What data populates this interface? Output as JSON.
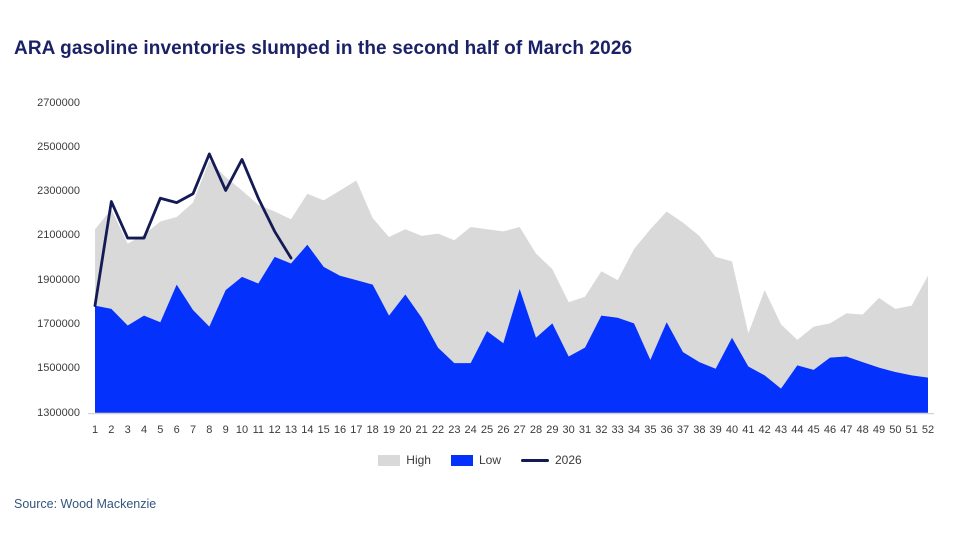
{
  "title": "ARA gasoline inventories slumped in the second half of March 2026",
  "source": "Source: Wood Mackenzie",
  "colors": {
    "title_text": "#1b2166",
    "source_text": "#33567e",
    "axis_text": "#3b3b3b",
    "axis_line": "#d2d2d2",
    "high_fill": "#d9d9d9",
    "low_fill": "#0431fb",
    "line_2026": "#141b54"
  },
  "chart_data": {
    "type": "area",
    "title": "ARA gasoline inventories slumped in the second half of March 2026",
    "xlabel": "",
    "ylabel": "",
    "x": [
      1,
      2,
      3,
      4,
      5,
      6,
      7,
      8,
      9,
      10,
      11,
      12,
      13,
      14,
      15,
      16,
      17,
      18,
      19,
      20,
      21,
      22,
      23,
      24,
      25,
      26,
      27,
      28,
      29,
      30,
      31,
      32,
      33,
      34,
      35,
      36,
      37,
      38,
      39,
      40,
      41,
      42,
      43,
      44,
      45,
      46,
      47,
      48,
      49,
      50,
      51,
      52
    ],
    "ylim": [
      1300000,
      2700000
    ],
    "ytick_step": 200000,
    "grid": false,
    "legend_position": "bottom-center",
    "series": [
      {
        "name": "High",
        "type": "area",
        "color": "#d9d9d9",
        "values": [
          2130000,
          2220000,
          2065000,
          2105000,
          2165000,
          2185000,
          2250000,
          2440000,
          2365000,
          2305000,
          2240000,
          2210000,
          2175000,
          2290000,
          2260000,
          2305000,
          2350000,
          2180000,
          2095000,
          2130000,
          2100000,
          2110000,
          2080000,
          2140000,
          2130000,
          2120000,
          2140000,
          2020000,
          1950000,
          1800000,
          1825000,
          1940000,
          1900000,
          2040000,
          2130000,
          2210000,
          2160000,
          2100000,
          2005000,
          1985000,
          1660000,
          1855000,
          1700000,
          1630000,
          1690000,
          1705000,
          1750000,
          1745000,
          1820000,
          1770000,
          1785000,
          1920000
        ]
      },
      {
        "name": "Low",
        "type": "area",
        "color": "#0431fb",
        "values": [
          1785000,
          1770000,
          1695000,
          1740000,
          1710000,
          1880000,
          1765000,
          1690000,
          1855000,
          1915000,
          1885000,
          2005000,
          1975000,
          2060000,
          1960000,
          1920000,
          1900000,
          1880000,
          1740000,
          1835000,
          1730000,
          1595000,
          1525000,
          1525000,
          1670000,
          1615000,
          1860000,
          1640000,
          1705000,
          1555000,
          1595000,
          1740000,
          1730000,
          1705000,
          1540000,
          1710000,
          1575000,
          1530000,
          1500000,
          1640000,
          1510000,
          1470000,
          1410000,
          1515000,
          1495000,
          1550000,
          1555000,
          1530000,
          1505000,
          1485000,
          1470000,
          1460000
        ]
      },
      {
        "name": "2026",
        "type": "line",
        "color": "#141b54",
        "values": [
          1785000,
          2255000,
          2090000,
          2090000,
          2270000,
          2250000,
          2290000,
          2470000,
          2305000,
          2445000,
          2270000,
          2120000,
          2000000
        ]
      }
    ]
  }
}
